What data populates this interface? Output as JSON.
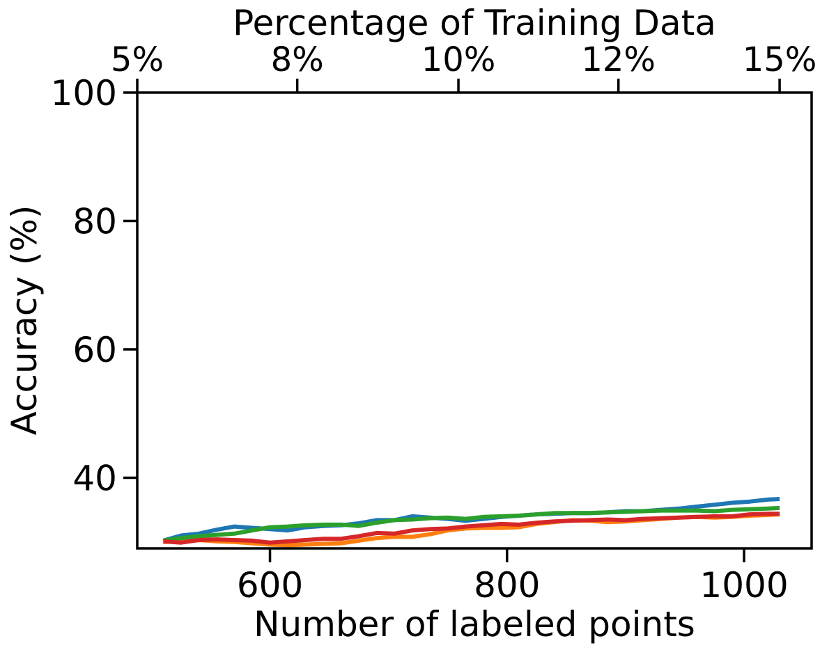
{
  "chart_data": {
    "type": "line",
    "xlabel": "Number of labeled points",
    "ylabel": "Accuracy (%)",
    "top_xlabel": "Percentage of Training Data",
    "xlim": [
      488,
      1057
    ],
    "ylim": [
      29,
      100
    ],
    "x_ticks": [
      600,
      800,
      1000
    ],
    "x_tick_labels": [
      "600",
      "800",
      "1000"
    ],
    "y_ticks": [
      40,
      60,
      80,
      100
    ],
    "y_tick_labels": [
      "40",
      "60",
      "80",
      "100"
    ],
    "top_ticks": [
      5,
      8,
      10,
      12,
      15
    ],
    "top_tick_labels": [
      "5%",
      "8%",
      "10%",
      "12%",
      "15%"
    ],
    "top_tick_x": [
      488,
      623,
      759,
      894,
      1030
    ],
    "grid": false,
    "legend": "none",
    "x": [
      510,
      525,
      540,
      555,
      570,
      585,
      600,
      615,
      630,
      645,
      660,
      675,
      690,
      705,
      720,
      735,
      750,
      765,
      780,
      795,
      810,
      825,
      840,
      855,
      870,
      885,
      900,
      915,
      930,
      945,
      960,
      975,
      990,
      1005,
      1020,
      1030
    ],
    "series": [
      {
        "color": "#1f77b4",
        "values": [
          30.2,
          31.0,
          31.3,
          31.9,
          32.4,
          32.2,
          32.0,
          31.8,
          32.3,
          32.5,
          32.6,
          32.9,
          33.4,
          33.4,
          34.0,
          33.8,
          33.6,
          33.3,
          33.6,
          33.9,
          34.1,
          34.3,
          34.4,
          34.5,
          34.5,
          34.6,
          34.8,
          34.8,
          35.0,
          35.2,
          35.5,
          35.8,
          36.1,
          36.3,
          36.6,
          36.7
        ]
      },
      {
        "color": "#ff7f0e",
        "values": [
          30.0,
          30.1,
          30.3,
          30.1,
          30.0,
          29.8,
          29.6,
          29.5,
          29.6,
          29.7,
          29.8,
          30.2,
          30.6,
          30.8,
          30.8,
          31.2,
          31.8,
          32.1,
          32.2,
          32.2,
          32.3,
          32.8,
          33.1,
          33.4,
          33.3,
          33.1,
          33.2,
          33.4,
          33.6,
          33.8,
          33.9,
          33.8,
          33.9,
          34.1,
          34.2,
          34.3
        ]
      },
      {
        "color": "#2ca02c",
        "values": [
          30.2,
          30.6,
          30.9,
          31.1,
          31.3,
          31.8,
          32.3,
          32.4,
          32.6,
          32.7,
          32.7,
          32.5,
          33.0,
          33.4,
          33.5,
          33.7,
          33.8,
          33.6,
          33.9,
          34.0,
          34.1,
          34.3,
          34.5,
          34.5,
          34.5,
          34.6,
          34.7,
          34.8,
          34.9,
          34.9,
          34.9,
          34.8,
          35.0,
          35.1,
          35.2,
          35.3
        ]
      },
      {
        "color": "#d62728",
        "values": [
          30.1,
          29.9,
          30.3,
          30.4,
          30.3,
          30.2,
          29.9,
          30.1,
          30.3,
          30.5,
          30.5,
          30.9,
          31.4,
          31.3,
          31.8,
          32.0,
          32.1,
          32.4,
          32.6,
          32.8,
          32.7,
          33.0,
          33.2,
          33.3,
          33.4,
          33.5,
          33.4,
          33.6,
          33.7,
          33.8,
          33.9,
          34.0,
          34.0,
          34.3,
          34.4,
          34.4
        ]
      }
    ]
  }
}
